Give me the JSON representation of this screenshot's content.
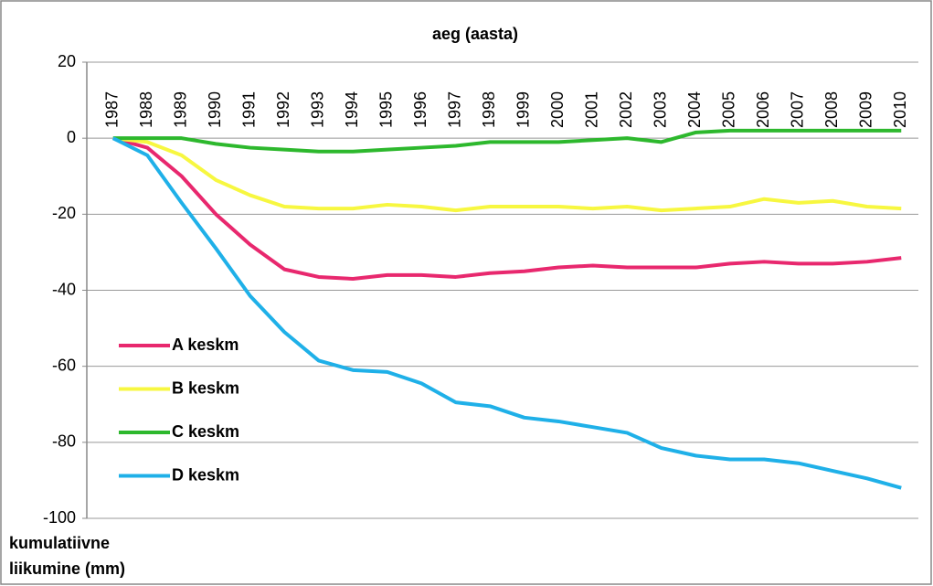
{
  "chart_data": {
    "type": "line",
    "title": "aeg (aasta)",
    "y_label": "kumulatiivne liikumine (mm)",
    "categories": [
      "1987",
      "1988",
      "1989",
      "1990",
      "1991",
      "1992",
      "1993",
      "1994",
      "1995",
      "1996",
      "1997",
      "1998",
      "1999",
      "2000",
      "2001",
      "2002",
      "2003",
      "2004",
      "2005",
      "2006",
      "2007",
      "2008",
      "2009",
      "2010"
    ],
    "series": [
      {
        "name": "A keskm",
        "color": "#e8286e",
        "values": [
          0,
          -2.5,
          -10,
          -20,
          -28,
          -34.5,
          -36.5,
          -37,
          -36,
          -36,
          -36.5,
          -35.5,
          -35,
          -34,
          -33.5,
          -34,
          -34,
          -34,
          -33,
          -32.5,
          -33,
          -33,
          -32.5,
          -31.5
        ]
      },
      {
        "name": "B keskm",
        "color": "#f7f740",
        "values": [
          0,
          -1,
          -4.5,
          -11,
          -15,
          -18,
          -18.5,
          -18.5,
          -17.5,
          -18,
          -19,
          -18,
          -18,
          -18,
          -18.5,
          -18,
          -19,
          -18.5,
          -18,
          -16,
          -17,
          -16.5,
          -18,
          -18.5
        ]
      },
      {
        "name": "C keskm",
        "color": "#2db82d",
        "values": [
          0,
          0,
          0,
          -1.5,
          -2.5,
          -3,
          -3.5,
          -3.5,
          -3,
          -2.5,
          -2,
          -1,
          -1,
          -1,
          -0.5,
          0,
          -1,
          1.5,
          2,
          2,
          2,
          2,
          2,
          2
        ]
      },
      {
        "name": "D keskm",
        "color": "#1fb0e8",
        "values": [
          0,
          -4.5,
          -17,
          -29,
          -41.5,
          -51,
          -58.5,
          -61,
          -61.5,
          -64.5,
          -69.5,
          -70.5,
          -73.5,
          -74.5,
          -76,
          -77.5,
          -81.5,
          -83.5,
          -84.5,
          -84.5,
          -85.5,
          -87.5,
          -89.5,
          -92
        ]
      }
    ],
    "ylim": [
      -100,
      20
    ],
    "yticks": [
      -100,
      -80,
      -60,
      -40,
      -20,
      0,
      20
    ],
    "grid": true,
    "legend": "left"
  }
}
